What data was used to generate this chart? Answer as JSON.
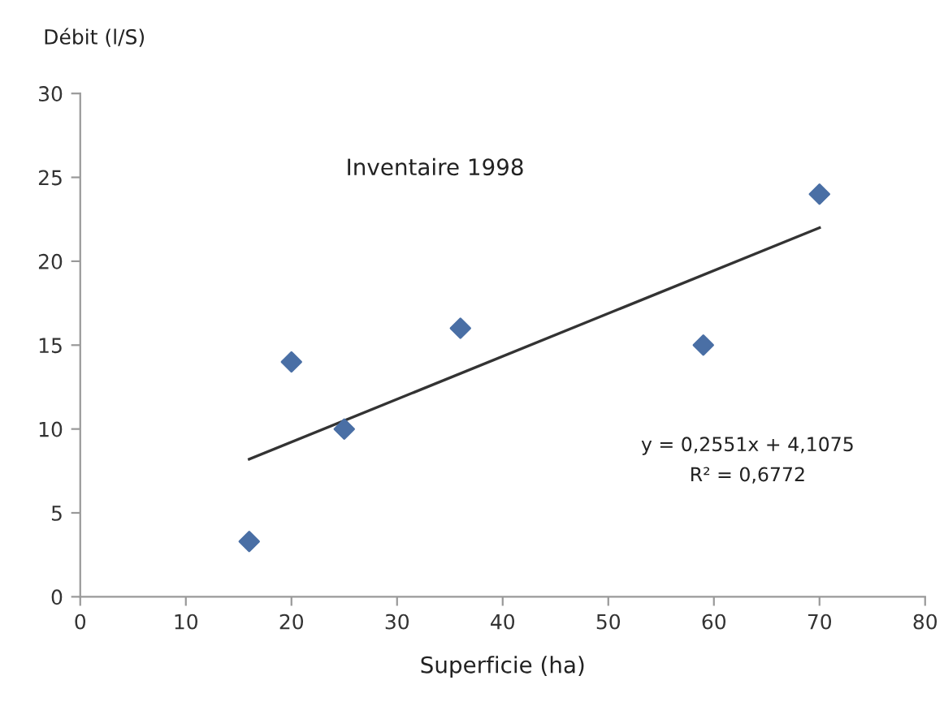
{
  "chart_data": {
    "type": "scatter",
    "title": "Inventaire 1998",
    "xlabel": "Superficie (ha)",
    "ylabel": "Débit (l/S)",
    "annotations": [
      "y = 0,2551x + 4,1075",
      "R² = 0,6772"
    ],
    "x": [
      16,
      20,
      25,
      36,
      59,
      70
    ],
    "series": [
      {
        "color": "#4a6fa5",
        "values": [
          3.3,
          14,
          10,
          16,
          15,
          24
        ],
        "marker": "diamond"
      },
      {
        "type": "line",
        "color": "#333333",
        "x": [
          16,
          70
        ],
        "values": [
          8.2,
          22.0
        ],
        "marker": "none",
        "line_style": "solid"
      }
    ],
    "xlim": [
      0,
      80
    ],
    "ylim": [
      0,
      30
    ],
    "xticks": [
      0,
      10,
      20,
      30,
      40,
      50,
      60,
      70,
      80
    ],
    "yticks": [
      0,
      5,
      10,
      15,
      20,
      25,
      30
    ],
    "grid": false,
    "legend": false
  }
}
